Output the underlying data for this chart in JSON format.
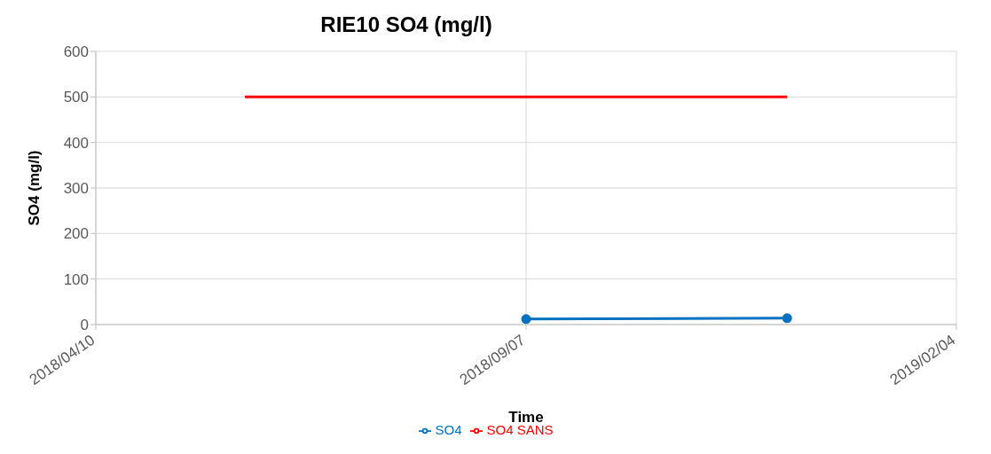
{
  "chart_data": {
    "type": "line",
    "title": "RIE10 SO4 (mg/l)",
    "xlabel": "Time",
    "ylabel": "SO4 (mg/l)",
    "series": [
      {
        "name": "SO4 SANS",
        "color": "#ff0000",
        "x": [
          "2018-06-01",
          "2018-12-07"
        ],
        "values": [
          500,
          500
        ],
        "marker": "none"
      },
      {
        "name": "SO4",
        "color": "#0070c0",
        "x": [
          "2018-09-07",
          "2018-12-07"
        ],
        "values": [
          12,
          14
        ],
        "marker": "circle"
      }
    ],
    "xlim": [
      "2018-04-10",
      "2019-02-04"
    ],
    "xticks": [
      {
        "value": "2018-04-10",
        "label": "2018/04/10"
      },
      {
        "value": "2018-09-07",
        "label": "2018/09/07"
      },
      {
        "value": "2019-02-04",
        "label": "2019/02/04"
      }
    ],
    "ylim": [
      0,
      600
    ],
    "yticks": [
      0,
      100,
      200,
      300,
      400,
      500,
      600
    ],
    "grid": true,
    "legend": "bottom",
    "line_style": "solid"
  }
}
